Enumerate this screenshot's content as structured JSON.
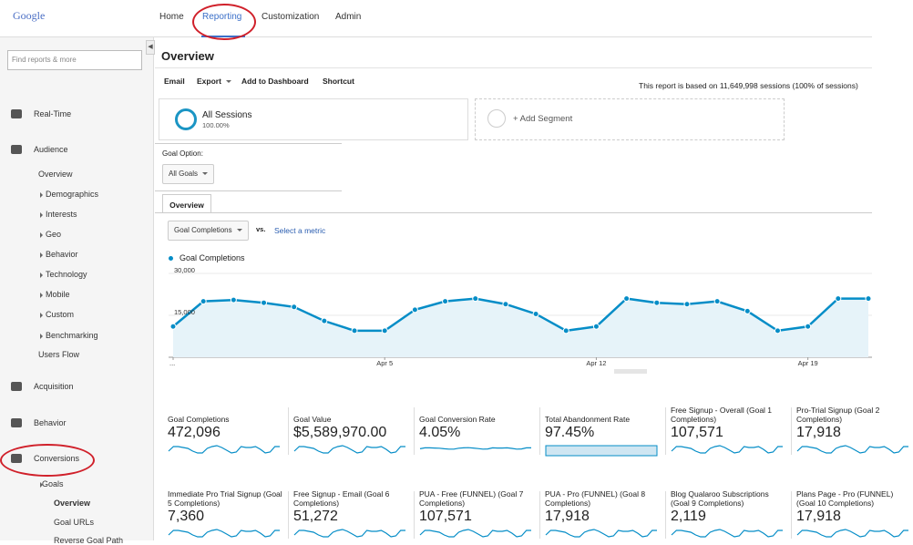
{
  "header": {
    "logo": "Google",
    "nav": [
      "Home",
      "Reporting",
      "Customization",
      "Admin"
    ]
  },
  "sidebar": {
    "search_placeholder": "Find reports & more",
    "items": [
      "Real-Time",
      "Audience",
      "Overview",
      "Demographics",
      "Interests",
      "Geo",
      "Behavior",
      "Technology",
      "Mobile",
      "Custom",
      "Benchmarking",
      "Users Flow",
      "Acquisition",
      "Behavior",
      "Conversions",
      "Goals",
      "Overview",
      "Goal URLs",
      "Reverse Goal Path"
    ]
  },
  "page": {
    "title": "Overview",
    "toolbar": [
      "Email",
      "Export",
      "Add to Dashboard",
      "Shortcut"
    ],
    "sessions_note": "This report is based on 11,649,998 sessions (100% of sessions)"
  },
  "segments": {
    "active_name": "All Sessions",
    "active_percent": "100.00%",
    "add": "+ Add Segment"
  },
  "goal_option": {
    "label": "Goal Option:",
    "value": "All Goals"
  },
  "tab": "Overview",
  "metric_picker": {
    "metric": "Goal Completions",
    "vs": "vs.",
    "other": "Select a metric"
  },
  "chart_data": {
    "type": "line",
    "categories": [
      "...",
      null,
      null,
      null,
      null,
      null,
      null,
      "Apr 5",
      null,
      null,
      null,
      null,
      null,
      null,
      "Apr 12",
      null,
      null,
      null,
      null,
      null,
      null,
      "Apr 19",
      null,
      null
    ],
    "series": [
      {
        "name": "Goal Completions",
        "color": "#058dc7",
        "values": [
          11000,
          20000,
          20500,
          19500,
          18000,
          13000,
          9500,
          9500,
          17000,
          20000,
          21000,
          19000,
          15500,
          9500,
          11000,
          21000,
          19500,
          19000,
          20000,
          16500,
          9500,
          11000,
          21000,
          21000
        ]
      }
    ],
    "ylim": [
      0,
      30000
    ],
    "yticks": [
      {
        "value": 15000,
        "label": "15,000"
      },
      {
        "value": 30000,
        "label": "30,000"
      }
    ],
    "grid": true
  },
  "scorecards": [
    {
      "label": "Goal Completions",
      "value": "472,096"
    },
    {
      "label": "Goal Value",
      "value": "$5,589,970.00"
    },
    {
      "label": "Goal Conversion Rate",
      "value": "4.05%"
    },
    {
      "label": "Total Abandonment Rate",
      "value": "97.45%"
    },
    {
      "label": "Free Signup - Overall (Goal 1 Completions)",
      "value": "107,571"
    },
    {
      "label": "Pro-Trial Signup (Goal 2 Completions)",
      "value": "17,918"
    },
    {
      "label": "Immediate Pro Trial Signup (Goal 5 Completions)",
      "value": "7,360"
    },
    {
      "label": "Free Signup - Email (Goal 6 Completions)",
      "value": "51,272"
    },
    {
      "label": "PUA - Free (FUNNEL) (Goal 7 Completions)",
      "value": "107,571"
    },
    {
      "label": "PUA - Pro (FUNNEL) (Goal 8 Completions)",
      "value": "17,918"
    },
    {
      "label": "Blog Qualaroo Subscriptions (Goal 9 Completions)",
      "value": "2,119"
    },
    {
      "label": "Plans Page - Pro (FUNNEL) (Goal 10 Completions)",
      "value": "17,918"
    }
  ]
}
